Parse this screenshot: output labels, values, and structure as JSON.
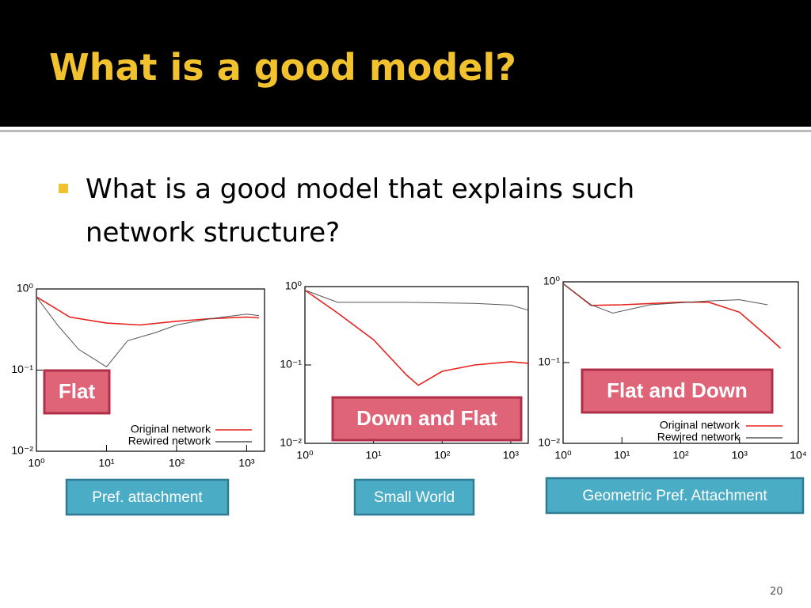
{
  "header": {
    "title": "What is a good model?"
  },
  "bullet": "What is a good model that explains such network structure?",
  "page_number": "20",
  "chart_data": [
    {
      "type": "line",
      "log_x": true,
      "log_y": true,
      "legend": "lower right",
      "annotation": "Flat",
      "caption": "Pref. attachment",
      "xlim": [
        1,
        1800
      ],
      "ylim": [
        0.01,
        1
      ],
      "xticks": [
        {
          "value": 1,
          "label": "10⁰"
        },
        {
          "value": 10,
          "label": "10¹"
        },
        {
          "value": 100,
          "label": "10²"
        },
        {
          "value": 1000,
          "label": "10³"
        }
      ],
      "yticks": [
        {
          "value": 0.01,
          "label": "10⁻²"
        },
        {
          "value": 0.1,
          "label": "10⁻¹"
        },
        {
          "value": 1,
          "label": "10⁰"
        }
      ],
      "series": [
        {
          "name": "Original network",
          "color": "#e8211d",
          "x": [
            1,
            3,
            10,
            30,
            100,
            300,
            1000,
            1500
          ],
          "values": [
            0.8,
            0.45,
            0.38,
            0.36,
            0.4,
            0.43,
            0.45,
            0.44
          ]
        },
        {
          "name": "Rewired network",
          "color": "#555555",
          "x": [
            1,
            2,
            4,
            10,
            20,
            50,
            100,
            300,
            1000,
            1500
          ],
          "values": [
            0.8,
            0.36,
            0.18,
            0.11,
            0.23,
            0.29,
            0.36,
            0.43,
            0.49,
            0.47
          ]
        }
      ]
    },
    {
      "type": "line",
      "log_x": true,
      "log_y": true,
      "annotation": "Down and Flat",
      "caption": "Small World",
      "xlim": [
        1,
        1800
      ],
      "ylim": [
        0.01,
        1
      ],
      "xticks": [
        {
          "value": 1,
          "label": "10⁰"
        },
        {
          "value": 10,
          "label": "10¹"
        },
        {
          "value": 100,
          "label": "10²"
        },
        {
          "value": 1000,
          "label": "10³"
        }
      ],
      "yticks": [
        {
          "value": 0.01,
          "label": "10⁻²"
        },
        {
          "value": 0.1,
          "label": "10⁻¹"
        },
        {
          "value": 1,
          "label": "10⁰"
        }
      ],
      "series": [
        {
          "color": "#e8211d",
          "x": [
            1,
            3,
            10,
            30,
            45,
            100,
            300,
            1000,
            1800
          ],
          "values": [
            0.9,
            0.46,
            0.21,
            0.075,
            0.055,
            0.083,
            0.1,
            0.11,
            0.105
          ]
        },
        {
          "color": "#555555",
          "x": [
            1,
            3,
            30,
            300,
            1000,
            1800
          ],
          "values": [
            0.9,
            0.63,
            0.63,
            0.61,
            0.58,
            0.5
          ]
        }
      ]
    },
    {
      "type": "line",
      "log_x": true,
      "log_y": true,
      "legend": "lower right",
      "annotation": "Flat and Down",
      "caption": "Geometric Pref. Attachment",
      "xlim": [
        1,
        10000
      ],
      "ylim": [
        0.01,
        1
      ],
      "xticks": [
        {
          "value": 1,
          "label": "10⁰"
        },
        {
          "value": 10,
          "label": "10¹"
        },
        {
          "value": 100,
          "label": "10²"
        },
        {
          "value": 1000,
          "label": "10³"
        },
        {
          "value": 10000,
          "label": "10⁴"
        }
      ],
      "yticks": [
        {
          "value": 0.01,
          "label": "10⁻²"
        },
        {
          "value": 0.1,
          "label": "10⁻¹"
        },
        {
          "value": 1,
          "label": "10⁰"
        }
      ],
      "series": [
        {
          "name": "Original network",
          "color": "#e8211d",
          "x": [
            1,
            3,
            10,
            100,
            300,
            1000,
            3000,
            5000
          ],
          "values": [
            0.95,
            0.51,
            0.52,
            0.56,
            0.56,
            0.42,
            0.21,
            0.15
          ]
        },
        {
          "name": "Rewired network",
          "color": "#555555",
          "x": [
            1,
            3,
            7,
            30,
            300,
            1000,
            3000
          ],
          "values": [
            0.95,
            0.52,
            0.41,
            0.52,
            0.58,
            0.6,
            0.52
          ]
        }
      ]
    }
  ]
}
